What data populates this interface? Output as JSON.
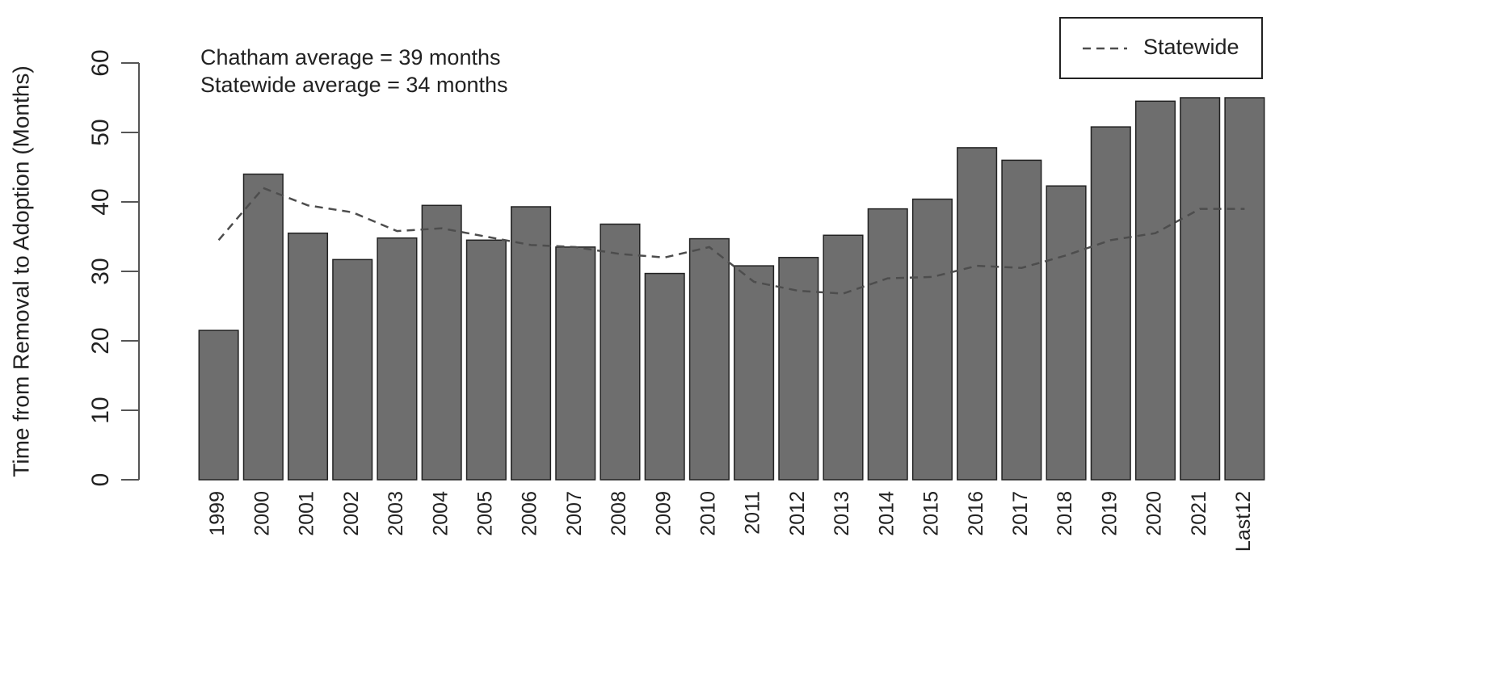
{
  "chart_data": {
    "type": "bar",
    "ylabel": "Time from Removal to Adoption (Months)",
    "annotations": [
      "Chatham average = 39 months",
      "Statewide average = 34 months"
    ],
    "categories": [
      "1999",
      "2000",
      "2001",
      "2002",
      "2003",
      "2004",
      "2005",
      "2006",
      "2007",
      "2008",
      "2009",
      "2010",
      "2011",
      "2012",
      "2013",
      "2014",
      "2015",
      "2016",
      "2017",
      "2018",
      "2019",
      "2020",
      "2021",
      "Last12"
    ],
    "series": [
      {
        "type": "bar",
        "color": "#6e6e6e",
        "values": [
          21.5,
          44,
          35.5,
          31.7,
          34.8,
          39.5,
          34.5,
          39.3,
          33.5,
          36.8,
          29.7,
          34.7,
          30.8,
          32,
          35.2,
          39,
          40.4,
          47.8,
          46,
          42.3,
          50.8,
          54.5,
          55,
          55
        ]
      },
      {
        "type": "line",
        "name": "Statewide",
        "color": "#4d4d4d",
        "linestyle": "dashed",
        "values": [
          34.5,
          42,
          39.5,
          38.5,
          35.8,
          36.2,
          35,
          33.8,
          33.5,
          32.5,
          32,
          33.5,
          28.5,
          27.2,
          26.8,
          29,
          29.2,
          30.8,
          30.5,
          32.3,
          34.5,
          35.5,
          39,
          39
        ]
      }
    ],
    "ylim": [
      0,
      60
    ],
    "yticks": [
      0,
      10,
      20,
      30,
      40,
      50,
      60
    ],
    "legend": "top-right"
  }
}
